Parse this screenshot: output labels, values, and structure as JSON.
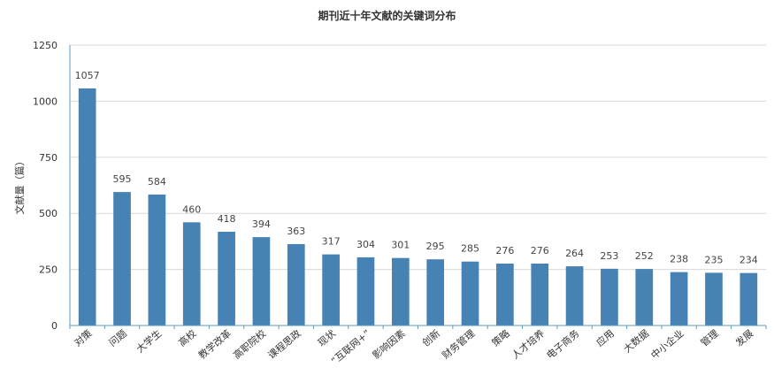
{
  "chart_data": {
    "type": "bar",
    "title": "期刊近十年文献的关键词分布",
    "xlabel": "",
    "ylabel": "文献量（篇）",
    "ylim": [
      0,
      1250
    ],
    "yticks": [
      0,
      250,
      500,
      750,
      1000,
      1250
    ],
    "grid": true,
    "bar_color": "#4682b4",
    "categories": [
      "对策",
      "问题",
      "大学生",
      "高校",
      "教学改革",
      "高职院校",
      "课程思政",
      "现状",
      "“互联网+”",
      "影响因素",
      "创新",
      "财务管理",
      "策略",
      "人才培养",
      "电子商务",
      "应用",
      "大数据",
      "中小企业",
      "管理",
      "发展"
    ],
    "values": [
      1057,
      595,
      584,
      460,
      418,
      394,
      363,
      317,
      304,
      301,
      295,
      285,
      276,
      276,
      264,
      253,
      252,
      238,
      235,
      234
    ]
  }
}
